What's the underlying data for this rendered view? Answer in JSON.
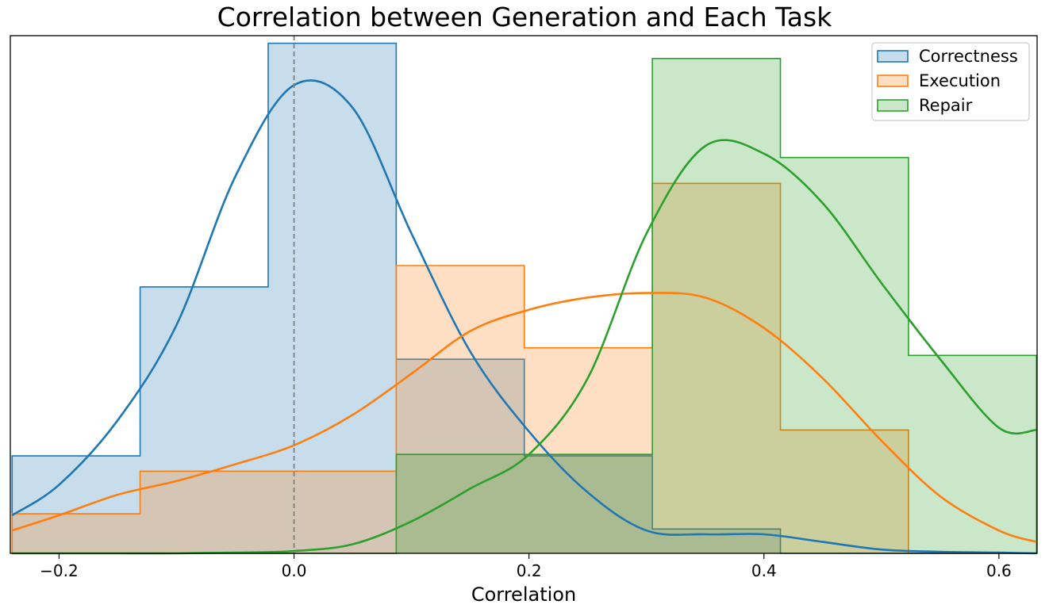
{
  "chart_data": {
    "type": "histogram",
    "title": "Correlation between Generation and Each Task",
    "xlabel": "Correlation",
    "ylabel": "",
    "xlim": [
      -0.2415,
      0.6325
    ],
    "ylim": [
      0,
      6.8
    ],
    "xticks": [
      -0.2,
      0.0,
      0.2,
      0.4,
      0.6
    ],
    "xtick_labels": [
      "−0.2",
      "0.0",
      "0.2",
      "0.4",
      "0.6"
    ],
    "y_ticks_visible": false,
    "grid": false,
    "legend_position": "top-right",
    "reference_line": {
      "x": 0.0,
      "style": "dashed",
      "color": "#808080"
    },
    "bin_edges": [
      -0.24,
      -0.131,
      -0.022,
      0.087,
      0.196,
      0.305,
      0.414,
      0.523,
      0.632
    ],
    "series": [
      {
        "name": "Correctness",
        "color": "#1f77b4",
        "counts": [
          1.28,
          3.5,
          6.7,
          2.55,
          1.28,
          0.32,
          0,
          0
        ],
        "kde": {
          "x": [
            -0.24,
            -0.2,
            -0.15,
            -0.1,
            -0.05,
            0.0,
            0.05,
            0.1,
            0.15,
            0.2,
            0.25,
            0.3,
            0.35,
            0.4,
            0.45,
            0.5,
            0.55,
            0.6,
            0.632
          ],
          "y": [
            0.5,
            0.9,
            1.75,
            3.0,
            4.95,
            6.15,
            5.85,
            4.2,
            2.65,
            1.6,
            0.8,
            0.3,
            0.25,
            0.25,
            0.15,
            0.05,
            0.02,
            0.01,
            0.0
          ]
        }
      },
      {
        "name": "Execution",
        "color": "#ff7f0e",
        "counts": [
          0.52,
          1.08,
          1.08,
          3.78,
          2.7,
          4.86,
          1.62,
          0
        ],
        "kde": {
          "x": [
            -0.24,
            -0.2,
            -0.15,
            -0.1,
            -0.05,
            0.0,
            0.05,
            0.1,
            0.15,
            0.2,
            0.25,
            0.3,
            0.35,
            0.4,
            0.45,
            0.5,
            0.55,
            0.6,
            0.632
          ],
          "y": [
            0.3,
            0.5,
            0.77,
            0.95,
            1.17,
            1.42,
            1.82,
            2.36,
            2.92,
            3.2,
            3.36,
            3.42,
            3.36,
            2.96,
            2.3,
            1.48,
            0.75,
            0.3,
            0.15
          ]
        }
      },
      {
        "name": "Repair",
        "color": "#2ca02c",
        "counts": [
          0,
          0,
          0,
          1.3,
          1.3,
          6.5,
          5.2,
          2.6
        ],
        "kde": {
          "x": [
            -0.24,
            -0.2,
            -0.15,
            -0.1,
            -0.05,
            0.0,
            0.05,
            0.1,
            0.15,
            0.2,
            0.25,
            0.3,
            0.35,
            0.4,
            0.45,
            0.5,
            0.55,
            0.6,
            0.632
          ],
          "y": [
            0.0,
            0.0,
            0.0,
            0.0,
            0.01,
            0.03,
            0.12,
            0.42,
            0.85,
            1.3,
            2.3,
            4.2,
            5.35,
            5.25,
            4.6,
            3.55,
            2.55,
            1.65,
            1.62
          ]
        }
      }
    ]
  }
}
